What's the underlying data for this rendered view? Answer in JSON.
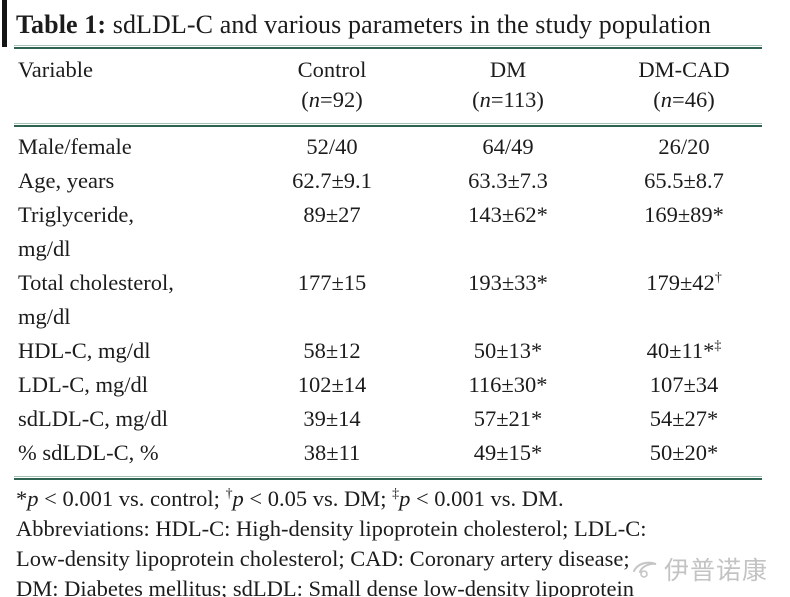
{
  "title": {
    "label": "Table 1:",
    "text": " sdLDL-C and various parameters in the study population"
  },
  "table": {
    "columns": [
      {
        "name": "Variable"
      },
      {
        "name": "Control",
        "n": [
          {
            "t": "("
          },
          {
            "t": "n",
            "i": true
          },
          {
            "t": "=92)"
          }
        ]
      },
      {
        "name": "DM",
        "n": [
          {
            "t": "("
          },
          {
            "t": "n",
            "i": true
          },
          {
            "t": "=113)"
          }
        ]
      },
      {
        "name": "DM-CAD",
        "n": [
          {
            "t": "("
          },
          {
            "t": "n",
            "i": true
          },
          {
            "t": "=46)"
          }
        ]
      }
    ],
    "rows": [
      {
        "variable": "Male/female",
        "control": "52/40",
        "dm": "64/49",
        "dmcad": "26/20"
      },
      {
        "variable": "Age, years",
        "control": "62.7±9.1",
        "dm": "63.3±7.3",
        "dmcad": "65.5±8.7"
      },
      {
        "variable": "Triglyceride,\nmg/dl",
        "control": "89±27",
        "dm": "143±62*",
        "dmcad": "169±89*"
      },
      {
        "variable": "Total cholesterol,\nmg/dl",
        "control": "177±15",
        "dm": "193±33*",
        "dmcad": [
          {
            "t": "179±42"
          },
          {
            "t": "†",
            "sup": true
          }
        ]
      },
      {
        "variable": "HDL-C, mg/dl",
        "control": "58±12",
        "dm": "50±13*",
        "dmcad": [
          {
            "t": "40±11*"
          },
          {
            "t": "‡",
            "sup": true
          }
        ]
      },
      {
        "variable": "LDL-C, mg/dl",
        "control": "102±14",
        "dm": "116±30*",
        "dmcad": "107±34"
      },
      {
        "variable": "sdLDL-C, mg/dl",
        "control": "39±14",
        "dm": "57±21*",
        "dmcad": "54±27*"
      },
      {
        "variable": "% sdLDL-C, %",
        "control": "38±11",
        "dm": "49±15*",
        "dmcad": "50±20*"
      }
    ]
  },
  "footnotes": {
    "significance": [
      {
        "t": "*"
      },
      {
        "t": "p",
        "i": true
      },
      {
        "t": " < 0.001 vs. control; "
      },
      {
        "t": "†",
        "sup": true
      },
      {
        "t": "p",
        "i": true
      },
      {
        "t": " < 0.05 vs. DM; "
      },
      {
        "t": "‡",
        "sup": true
      },
      {
        "t": "p",
        "i": true
      },
      {
        "t": " < 0.001 vs. DM."
      }
    ],
    "abbreviations": "Abbreviations: HDL-C: High-density lipoprotein cholesterol; LDL-C:\nLow-density lipoprotein cholesterol; CAD: Coronary artery disease;\nDM: Diabetes mellitus; sdLDL: Small dense low-density lipoprotein"
  },
  "watermark": {
    "text": "伊普诺康"
  },
  "colors": {
    "rule_dark": "#2d6350",
    "rule_light": "#a3c2b4",
    "text": "#1c1c1c",
    "watermark": "#9c9c9c",
    "left_bar": "#141414"
  }
}
